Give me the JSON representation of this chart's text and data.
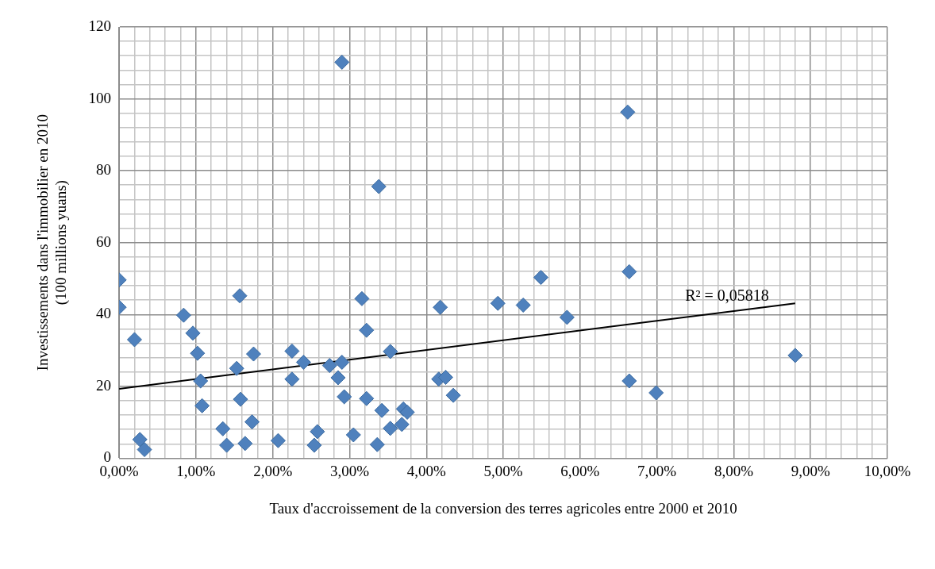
{
  "chart_data": {
    "type": "scatter",
    "xlabel": "Taux d'accroissement de la conversion des terres agricoles entre 2000 et 2010",
    "ylabel": "Investissements dans l'immobilier en 2010\n(100 millions yuans)",
    "series": [
      {
        "marker": "diamond",
        "color": "#4f81bd",
        "x": [
          0.0,
          0.0,
          0.2,
          0.27,
          0.33,
          0.84,
          0.96,
          1.02,
          1.06,
          1.08,
          1.35,
          1.4,
          1.57,
          1.53,
          1.58,
          1.64,
          1.75,
          1.73,
          2.07,
          2.25,
          2.25,
          2.4,
          2.58,
          2.54,
          2.74,
          2.9,
          2.85,
          2.93,
          3.05,
          3.16,
          3.22,
          3.22,
          3.36,
          3.53,
          3.42,
          3.7,
          3.75,
          3.53,
          3.68,
          4.18,
          4.16,
          4.25,
          4.35,
          4.93,
          5.26,
          5.49,
          5.83,
          6.64,
          6.64,
          6.99,
          8.8,
          2.9,
          3.38,
          6.62
        ],
        "values": [
          49.6,
          42.0,
          33.0,
          5.2,
          2.4,
          39.8,
          34.8,
          29.2,
          21.5,
          14.6,
          8.2,
          3.6,
          45.2,
          25.0,
          16.4,
          4.1,
          29.0,
          10.1,
          4.9,
          29.8,
          22.0,
          26.7,
          7.4,
          3.6,
          25.8,
          26.7,
          22.4,
          17.1,
          6.5,
          44.4,
          35.6,
          16.6,
          3.8,
          29.7,
          13.3,
          13.7,
          12.8,
          8.3,
          9.4,
          42.0,
          22.0,
          22.5,
          17.5,
          43.1,
          42.6,
          50.3,
          39.2,
          51.9,
          21.5,
          18.2,
          28.6,
          110.2,
          75.6,
          96.3
        ]
      },
      {
        "type": "line",
        "color": "#000000",
        "x": [
          0,
          8.8
        ],
        "values": [
          19.3,
          43.1
        ]
      }
    ],
    "annotations": [
      "R² = 0,05818"
    ],
    "xlim": [
      0,
      10
    ],
    "xticks": [
      {
        "value": 0,
        "label": "0,00%"
      },
      {
        "value": 0.2,
        "label": null
      },
      {
        "value": 0.4,
        "label": null
      },
      {
        "value": 0.6,
        "label": null
      },
      {
        "value": 0.8,
        "label": null
      },
      {
        "value": 1,
        "label": "1,00%"
      },
      {
        "value": 1.2,
        "label": null
      },
      {
        "value": 1.4,
        "label": null
      },
      {
        "value": 1.6,
        "label": null
      },
      {
        "value": 1.8,
        "label": null
      },
      {
        "value": 2,
        "label": "2,00%"
      },
      {
        "value": 2.2,
        "label": null
      },
      {
        "value": 2.4,
        "label": null
      },
      {
        "value": 2.6,
        "label": null
      },
      {
        "value": 2.8,
        "label": null
      },
      {
        "value": 3,
        "label": "3,00%"
      },
      {
        "value": 3.2,
        "label": null
      },
      {
        "value": 3.4,
        "label": null
      },
      {
        "value": 3.6,
        "label": null
      },
      {
        "value": 3.8,
        "label": null
      },
      {
        "value": 4,
        "label": "4,00%"
      },
      {
        "value": 4.2,
        "label": null
      },
      {
        "value": 4.4,
        "label": null
      },
      {
        "value": 4.6,
        "label": null
      },
      {
        "value": 4.8,
        "label": null
      },
      {
        "value": 5,
        "label": "5,00%"
      },
      {
        "value": 5.2,
        "label": null
      },
      {
        "value": 5.4,
        "label": null
      },
      {
        "value": 5.6,
        "label": null
      },
      {
        "value": 5.8,
        "label": null
      },
      {
        "value": 6,
        "label": "6,00%"
      },
      {
        "value": 6.2,
        "label": null
      },
      {
        "value": 6.4,
        "label": null
      },
      {
        "value": 6.6,
        "label": null
      },
      {
        "value": 6.8,
        "label": null
      },
      {
        "value": 7,
        "label": "7,00%"
      },
      {
        "value": 7.2,
        "label": null
      },
      {
        "value": 7.4,
        "label": null
      },
      {
        "value": 7.6,
        "label": null
      },
      {
        "value": 7.8,
        "label": null
      },
      {
        "value": 8,
        "label": "8,00%"
      },
      {
        "value": 8.2,
        "label": null
      },
      {
        "value": 8.4,
        "label": null
      },
      {
        "value": 8.6,
        "label": null
      },
      {
        "value": 8.8,
        "label": null
      },
      {
        "value": 9,
        "label": "9,00%"
      },
      {
        "value": 9.2,
        "label": null
      },
      {
        "value": 9.4,
        "label": null
      },
      {
        "value": 9.6,
        "label": null
      },
      {
        "value": 9.8,
        "label": null
      },
      {
        "value": 10,
        "label": "10,00%"
      }
    ],
    "ylim": [
      0,
      120
    ],
    "yticks": [
      0,
      {
        "value": 4,
        "label": null
      },
      {
        "value": 8,
        "label": null
      },
      {
        "value": 12,
        "label": null
      },
      {
        "value": 16,
        "label": null
      },
      20,
      {
        "value": 24,
        "label": null
      },
      {
        "value": 28,
        "label": null
      },
      {
        "value": 32,
        "label": null
      },
      {
        "value": 36,
        "label": null
      },
      40,
      {
        "value": 44,
        "label": null
      },
      {
        "value": 48,
        "label": null
      },
      {
        "value": 52,
        "label": null
      },
      {
        "value": 56,
        "label": null
      },
      60,
      {
        "value": 64,
        "label": null
      },
      {
        "value": 68,
        "label": null
      },
      {
        "value": 72,
        "label": null
      },
      {
        "value": 76,
        "label": null
      },
      80,
      {
        "value": 84,
        "label": null
      },
      {
        "value": 88,
        "label": null
      },
      {
        "value": 92,
        "label": null
      },
      {
        "value": 96,
        "label": null
      },
      100,
      {
        "value": 104,
        "label": null
      },
      {
        "value": 108,
        "label": null
      },
      {
        "value": 112,
        "label": null
      },
      {
        "value": 116,
        "label": null
      },
      120
    ],
    "grid": true,
    "legend": false
  }
}
